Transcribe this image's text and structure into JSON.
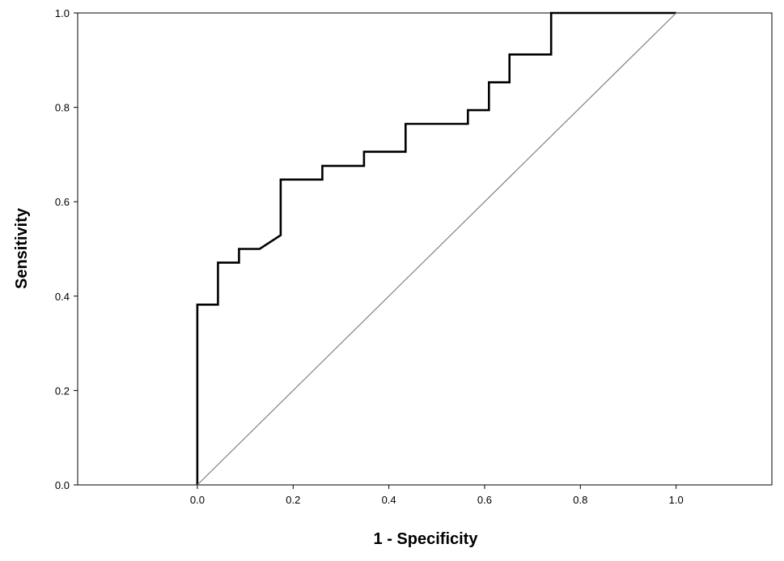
{
  "chart_data": {
    "type": "line",
    "xlabel": "1 - Specificity",
    "ylabel": "Sensitivity",
    "xlim": [
      -0.25,
      1.2
    ],
    "ylim": [
      0,
      1
    ],
    "x_ticks": [
      "0.0",
      "0.2",
      "0.4",
      "0.6",
      "0.8",
      "1.0"
    ],
    "y_ticks": [
      "0.0",
      "0.2",
      "0.4",
      "0.6",
      "0.8",
      "1.0"
    ],
    "grid": false,
    "series": [
      {
        "role": "roc-curve",
        "color": "#000000",
        "points": [
          [
            0.0,
            0.0
          ],
          [
            0.0,
            0.382
          ],
          [
            0.043,
            0.382
          ],
          [
            0.043,
            0.471
          ],
          [
            0.087,
            0.471
          ],
          [
            0.087,
            0.5
          ],
          [
            0.13,
            0.5
          ],
          [
            0.174,
            0.529
          ],
          [
            0.174,
            0.647
          ],
          [
            0.261,
            0.647
          ],
          [
            0.261,
            0.676
          ],
          [
            0.348,
            0.676
          ],
          [
            0.348,
            0.706
          ],
          [
            0.435,
            0.706
          ],
          [
            0.435,
            0.765
          ],
          [
            0.565,
            0.765
          ],
          [
            0.565,
            0.794
          ],
          [
            0.609,
            0.794
          ],
          [
            0.609,
            0.853
          ],
          [
            0.652,
            0.853
          ],
          [
            0.652,
            0.912
          ],
          [
            0.739,
            0.912
          ],
          [
            0.739,
            1.0
          ],
          [
            1.0,
            1.0
          ]
        ]
      },
      {
        "role": "reference-line",
        "color": "#808080",
        "points": [
          [
            0.0,
            0.0
          ],
          [
            1.0,
            1.0
          ]
        ]
      }
    ]
  }
}
